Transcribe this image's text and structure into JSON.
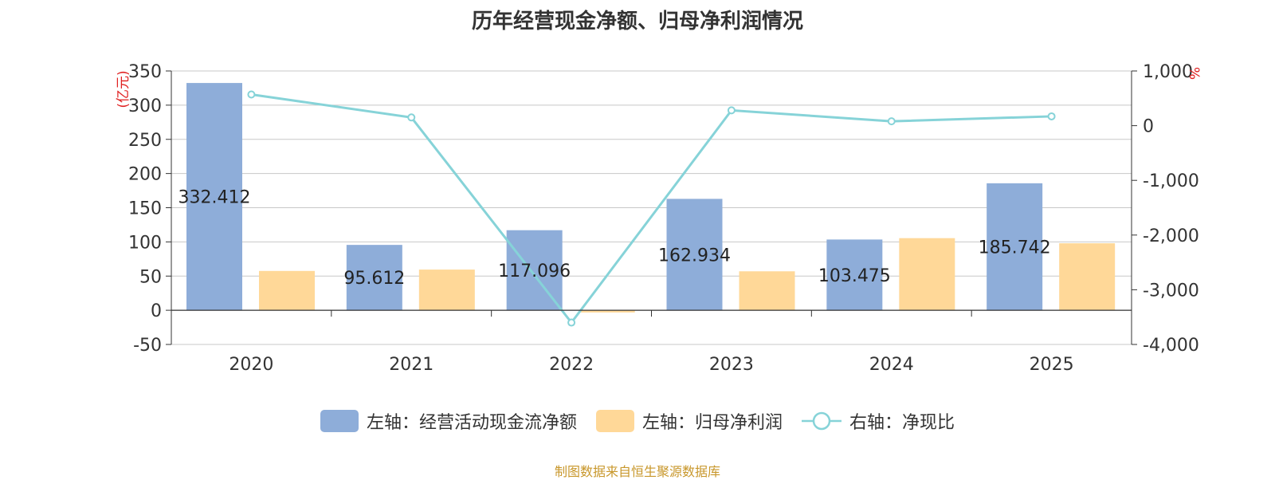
{
  "colors": {
    "bar_cash": "#8eadd9",
    "bar_profit": "#ffd898",
    "line_ratio": "#86d3d8",
    "axis_unit": "#e02020",
    "source": "#c8972b"
  },
  "legend": {
    "cash": "左轴：经营活动现金流净额",
    "profit": "左轴：归母净利润",
    "ratio": "右轴：净现比"
  },
  "source_text": "制图数据来自恒生聚源数据库",
  "chart_data": {
    "type": "bar",
    "title": "历年经营现金净额、归母净利润情况",
    "categories": [
      "2020",
      "2021",
      "2022",
      "2023",
      "2024",
      "2025"
    ],
    "left_axis": {
      "unit": "(亿元)",
      "ylim": [
        -50,
        350
      ],
      "ticks": [
        "350",
        "300",
        "250",
        "200",
        "150",
        "100",
        "50",
        "0",
        "-50"
      ]
    },
    "right_axis": {
      "unit": "%",
      "ylim": [
        -4000,
        1000
      ],
      "ticks": [
        "1,000",
        "0",
        "-1,000",
        "-2,000",
        "-3,000",
        "-4,000"
      ]
    },
    "grid": true,
    "legend_position": "bottom",
    "series": [
      {
        "name": "左轴：经营活动现金流净额",
        "type": "bar",
        "axis": "left",
        "values": [
          332.412,
          95.612,
          117.096,
          162.934,
          103.475,
          185.742
        ],
        "labels": [
          "332.412",
          "95.612",
          "117.096",
          "162.934",
          "103.475",
          "185.742"
        ]
      },
      {
        "name": "左轴：归母净利润",
        "type": "bar",
        "axis": "left",
        "values": [
          57.5,
          59.5,
          -3.2,
          57,
          105.5,
          98
        ]
      },
      {
        "name": "右轴：净现比",
        "type": "line",
        "axis": "right",
        "values": [
          570,
          150,
          -3600,
          280,
          80,
          170
        ]
      }
    ]
  }
}
